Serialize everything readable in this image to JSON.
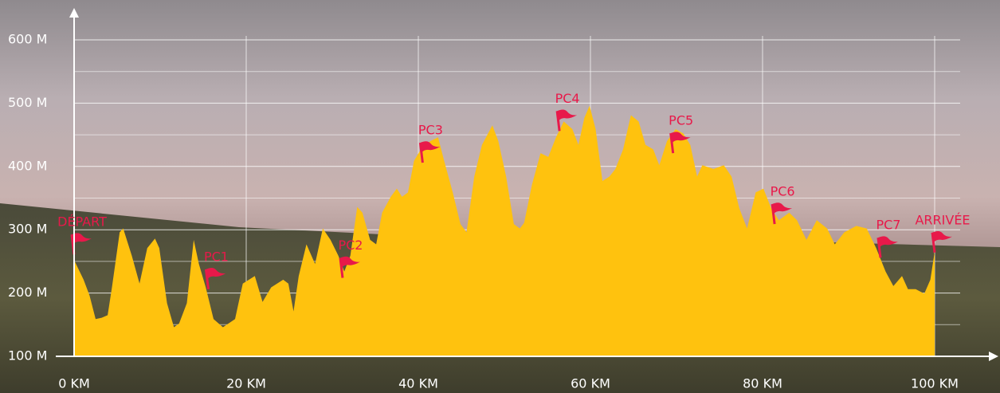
{
  "chart_data": {
    "type": "area",
    "x": [
      0,
      1.1,
      1.8,
      2.5,
      3.2,
      3.9,
      4.4,
      5.3,
      5.7,
      6.7,
      7.6,
      8.5,
      9.4,
      9.9,
      10.8,
      11.6,
      12.2,
      13.1,
      13.9,
      14.5,
      15.3,
      16.2,
      17.3,
      18.7,
      19.6,
      21,
      21.9,
      22.9,
      24.3,
      24.9,
      25.5,
      26.1,
      27,
      28,
      28.9,
      29.8,
      30.7,
      31.4,
      32.1,
      32.9,
      33.5,
      34.4,
      35.1,
      35.8,
      36.8,
      37.5,
      38.1,
      38.8,
      39.5,
      40.3,
      41.4,
      42.3,
      43,
      44,
      44.9,
      45.6,
      46.5,
      47.4,
      48.6,
      49.3,
      50.2,
      51.1,
      51.8,
      52.3,
      53.2,
      54.2,
      55.1,
      56,
      56.9,
      57.9,
      58.6,
      59.3,
      59.9,
      60.6,
      61.4,
      62.2,
      62.9,
      63.8,
      64.7,
      65.6,
      66.4,
      67.3,
      68,
      68.9,
      69.9,
      70.8,
      71.6,
      72.4,
      73,
      74.3,
      75.5,
      76.4,
      77.3,
      78.2,
      79.2,
      80.1,
      81,
      81.9,
      83.1,
      84,
      85.1,
      86.3,
      87.5,
      88.4,
      89.5,
      90.9,
      92.1,
      93.2,
      94.3,
      95.2,
      96.2,
      96.9,
      97.8,
      98.8,
      99.5,
      100
    ],
    "values": [
      252,
      221,
      196,
      159,
      161,
      165,
      209,
      296,
      302,
      259,
      215,
      271,
      286,
      271,
      184,
      146,
      152,
      184,
      284,
      246,
      209,
      159,
      146,
      159,
      215,
      227,
      186,
      209,
      221,
      215,
      171,
      227,
      277,
      246,
      302,
      284,
      259,
      234,
      259,
      336,
      327,
      284,
      277,
      327,
      352,
      365,
      352,
      359,
      409,
      427,
      440,
      446,
      409,
      359,
      309,
      296,
      384,
      434,
      465,
      440,
      384,
      309,
      302,
      311,
      371,
      421,
      415,
      446,
      471,
      459,
      434,
      477,
      496,
      459,
      377,
      384,
      396,
      427,
      481,
      471,
      434,
      427,
      402,
      440,
      459,
      452,
      434,
      384,
      402,
      396,
      402,
      384,
      334,
      302,
      359,
      365,
      334,
      315,
      327,
      315,
      284,
      315,
      302,
      277,
      296,
      306,
      302,
      271,
      234,
      211,
      227,
      206,
      206,
      199,
      221,
      265
    ],
    "color": "#ffc20e",
    "xlim": [
      0,
      100
    ],
    "ylim": [
      100,
      600
    ],
    "xticks": [
      {
        "value": 0,
        "label": "0 KM"
      },
      {
        "value": 20,
        "label": "20 KM"
      },
      {
        "value": 40,
        "label": "40 KM"
      },
      {
        "value": 60,
        "label": "60 KM"
      },
      {
        "value": 80,
        "label": "80 KM"
      },
      {
        "value": 100,
        "label": "100 KM"
      }
    ],
    "yticks": [
      {
        "value": 100,
        "label": "100 M"
      },
      {
        "value": 200,
        "label": "200 M"
      },
      {
        "value": 300,
        "label": "300 M"
      },
      {
        "value": 400,
        "label": "400 M"
      },
      {
        "value": 500,
        "label": "500 M"
      },
      {
        "value": 600,
        "label": "600 M"
      }
    ],
    "minor_yticks": [
      150,
      250,
      350,
      450,
      550
    ],
    "grid": true,
    "flag_color": "#e8194a",
    "checkpoints": [
      {
        "label": "DÉPART",
        "km": 0,
        "elevation": 261
      },
      {
        "label": "PC1",
        "km": 15.6,
        "elevation": 206
      },
      {
        "label": "PC2",
        "km": 31.2,
        "elevation": 224
      },
      {
        "label": "PC3",
        "km": 40.5,
        "elevation": 406
      },
      {
        "label": "PC4",
        "km": 56.4,
        "elevation": 456
      },
      {
        "label": "PC5",
        "km": 69.6,
        "elevation": 421
      },
      {
        "label": "PC6",
        "km": 81.4,
        "elevation": 309
      },
      {
        "label": "PC7",
        "km": 93.7,
        "elevation": 256
      },
      {
        "label": "ARRIVÉE",
        "km": 100,
        "elevation": 264
      }
    ]
  }
}
